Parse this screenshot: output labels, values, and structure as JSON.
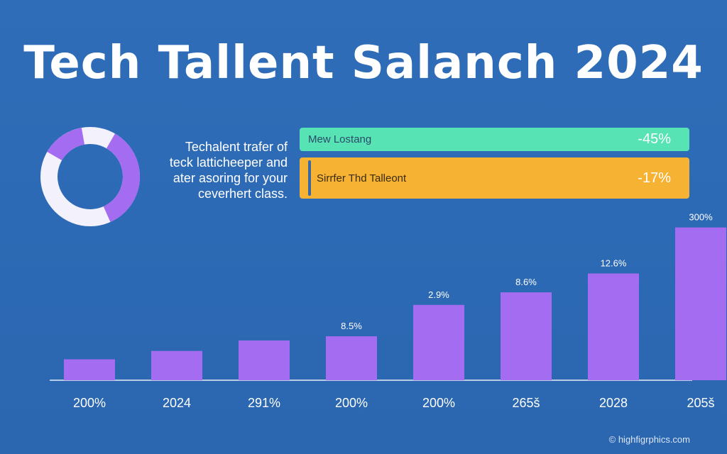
{
  "title": "Tech Tallent Salanch 2024",
  "blurb": {
    "lines": [
      "Techalent trafer of",
      "teck latticheeper and",
      "ater asoring for your",
      "ceverhert class."
    ]
  },
  "stats": [
    {
      "label": "Mew Lostang",
      "value": "-45%",
      "color": "#57e3b4"
    },
    {
      "label": "Sirrfer Thd Talleont",
      "value": "-17%",
      "color": "#f6b233"
    }
  ],
  "donut": {
    "share": 0.35,
    "color_fill": "#a46cf0",
    "color_track": "#f3f1fb"
  },
  "chart_data": {
    "type": "bar",
    "categories": [
      "200%",
      "2024",
      "291%",
      "200%",
      "200%",
      "265š",
      "2028",
      "205š"
    ],
    "values": [
      1.0,
      1.4,
      1.9,
      2.1,
      3.6,
      4.2,
      5.1,
      7.3
    ],
    "data_labels": [
      "",
      "",
      "",
      "8.5%",
      "2.9%",
      "8.6%",
      "12.6%",
      "300%"
    ],
    "ylim": [
      0,
      8
    ],
    "bar_color": "#a46cf0",
    "grid": false
  },
  "footer": "© highfigrphics.com",
  "colors": {
    "background": "#2d6ab5",
    "axis": "#e8eef8"
  }
}
